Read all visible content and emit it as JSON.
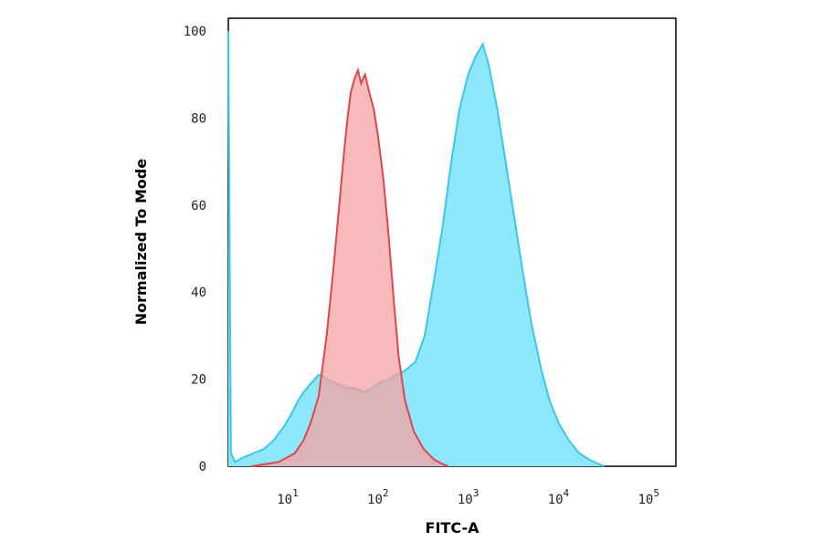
{
  "chart_data": {
    "type": "area",
    "xlabel": "FITC-A",
    "ylabel": "Normalized To Mode",
    "x_scale": "log",
    "xlim": [
      2.2,
      200000
    ],
    "ylim": [
      0,
      100
    ],
    "y_ticks": [
      0,
      20,
      40,
      60,
      80,
      100
    ],
    "x_ticks": [
      {
        "value": 10,
        "base": "10",
        "exp": "1"
      },
      {
        "value": 100,
        "base": "10",
        "exp": "2"
      },
      {
        "value": 1000,
        "base": "10",
        "exp": "3"
      },
      {
        "value": 10000,
        "base": "10",
        "exp": "4"
      },
      {
        "value": 100000,
        "base": "10",
        "exp": "5"
      }
    ],
    "grid": false,
    "series": [
      {
        "color_fill": "#8ee8fb",
        "color_line": "#3ec6e6",
        "points": [
          [
            2.2,
            100
          ],
          [
            2.35,
            3
          ],
          [
            2.6,
            1
          ],
          [
            3.2,
            2
          ],
          [
            4.2,
            3
          ],
          [
            5.5,
            4
          ],
          [
            7,
            6
          ],
          [
            9,
            9
          ],
          [
            11,
            12
          ],
          [
            13,
            15
          ],
          [
            15,
            17
          ],
          [
            18,
            19
          ],
          [
            22,
            21
          ],
          [
            28,
            20
          ],
          [
            35,
            19
          ],
          [
            45,
            18
          ],
          [
            55,
            18
          ],
          [
            70,
            17
          ],
          [
            85,
            18
          ],
          [
            100,
            19
          ],
          [
            130,
            20
          ],
          [
            160,
            21
          ],
          [
            200,
            22
          ],
          [
            260,
            24
          ],
          [
            330,
            30
          ],
          [
            420,
            43
          ],
          [
            520,
            55
          ],
          [
            650,
            70
          ],
          [
            800,
            82
          ],
          [
            1000,
            90
          ],
          [
            1200,
            94
          ],
          [
            1450,
            97
          ],
          [
            1700,
            92
          ],
          [
            2100,
            82
          ],
          [
            2600,
            70
          ],
          [
            3200,
            58
          ],
          [
            4000,
            45
          ],
          [
            5000,
            33
          ],
          [
            6500,
            22
          ],
          [
            8000,
            15
          ],
          [
            10000,
            10
          ],
          [
            13000,
            6
          ],
          [
            17000,
            3
          ],
          [
            22000,
            1.5
          ],
          [
            28000,
            0.5
          ],
          [
            32000,
            0
          ]
        ]
      },
      {
        "color_fill": "#f6a1a3",
        "color_line": "#d9484e",
        "points": [
          [
            4,
            0
          ],
          [
            8,
            1
          ],
          [
            12,
            3
          ],
          [
            15,
            6
          ],
          [
            18,
            10
          ],
          [
            22,
            16
          ],
          [
            27,
            30
          ],
          [
            32,
            45
          ],
          [
            38,
            62
          ],
          [
            42,
            72
          ],
          [
            46,
            80
          ],
          [
            50,
            86
          ],
          [
            55,
            89
          ],
          [
            60,
            91
          ],
          [
            65,
            88
          ],
          [
            72,
            90
          ],
          [
            80,
            86
          ],
          [
            90,
            82
          ],
          [
            100,
            76
          ],
          [
            115,
            66
          ],
          [
            130,
            54
          ],
          [
            150,
            38
          ],
          [
            170,
            25
          ],
          [
            200,
            15
          ],
          [
            250,
            8
          ],
          [
            320,
            4
          ],
          [
            420,
            1.5
          ],
          [
            520,
            0.5
          ],
          [
            600,
            0
          ]
        ]
      }
    ]
  }
}
